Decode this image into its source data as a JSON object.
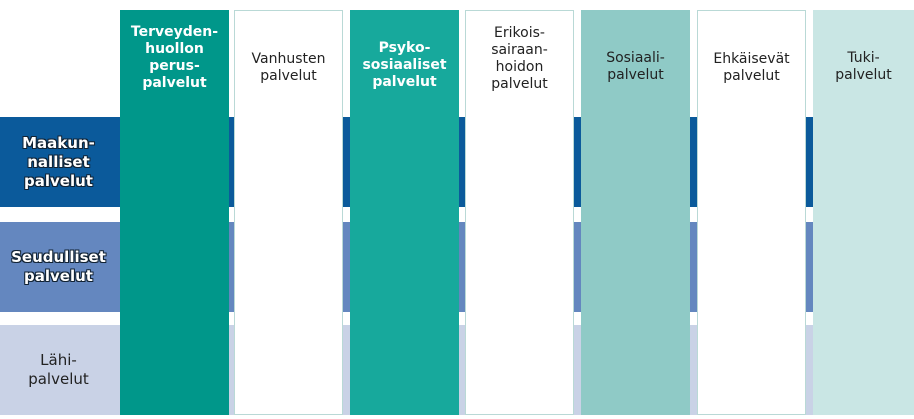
{
  "rows": [
    {
      "lines": [
        "Maakun-",
        "nalliset",
        "palvelut"
      ]
    },
    {
      "lines": [
        "Seudulliset",
        "palvelut"
      ]
    },
    {
      "lines": [
        "Lähi-",
        "palvelut"
      ]
    }
  ],
  "columns": [
    {
      "lines": [
        "Terveyden-",
        "huollon",
        "perus-",
        "palvelut"
      ]
    },
    {
      "lines": [
        "Vanhusten",
        "palvelut"
      ]
    },
    {
      "lines": [
        "Psyko-",
        "sosiaaliset",
        "palvelut"
      ]
    },
    {
      "lines": [
        "Erikois-",
        "sairaan-",
        "hoidon",
        "palvelut"
      ]
    },
    {
      "lines": [
        "Sosiaali-",
        "palvelut"
      ]
    },
    {
      "lines": [
        "Ehkäisevät",
        "palvelut"
      ]
    },
    {
      "lines": [
        "Tuki-",
        "palvelut"
      ]
    }
  ]
}
